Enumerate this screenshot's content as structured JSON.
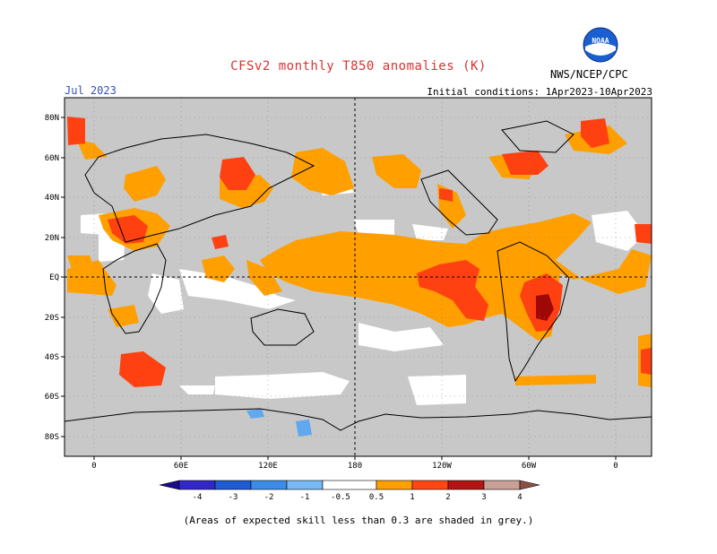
{
  "header": {
    "title": "CFSv2 monthly T850 anomalies (K)",
    "month": "Jul 2023",
    "init": "Initial conditions: 1Apr2023-10Apr2023",
    "org": "NWS/NCEP/CPC",
    "logo_text": "NOAA"
  },
  "map": {
    "lat_labels": [
      "80N",
      "60N",
      "40N",
      "20N",
      "EQ",
      "20S",
      "40S",
      "60S",
      "80S"
    ],
    "lon_labels": [
      "0",
      "60E",
      "120E",
      "180",
      "120W",
      "60W",
      "0"
    ],
    "colors": {
      "grey_low_skill": "#c8c8c8",
      "ocean_white": "#ffffff",
      "anom_0_5_1": "#ff9f00",
      "anom_1_2": "#ff4010",
      "anom_2_3": "#a00808",
      "anom_neg": "#60a8f0"
    }
  },
  "colorbar": {
    "labels": [
      "-4",
      "-3",
      "-2",
      "-1",
      "-0.5",
      "0.5",
      "1",
      "2",
      "3",
      "4"
    ],
    "colors": [
      "#1a0a8c",
      "#3228c8",
      "#1e5ad2",
      "#3c8ce6",
      "#78b9f5",
      "#ffffff",
      "#ffa000",
      "#ff4614",
      "#b41414",
      "#8c0000",
      "#c8a096",
      "#8c5046"
    ]
  },
  "footnote": "(Areas of expected skill less than 0.3 are shaded in grey.)"
}
